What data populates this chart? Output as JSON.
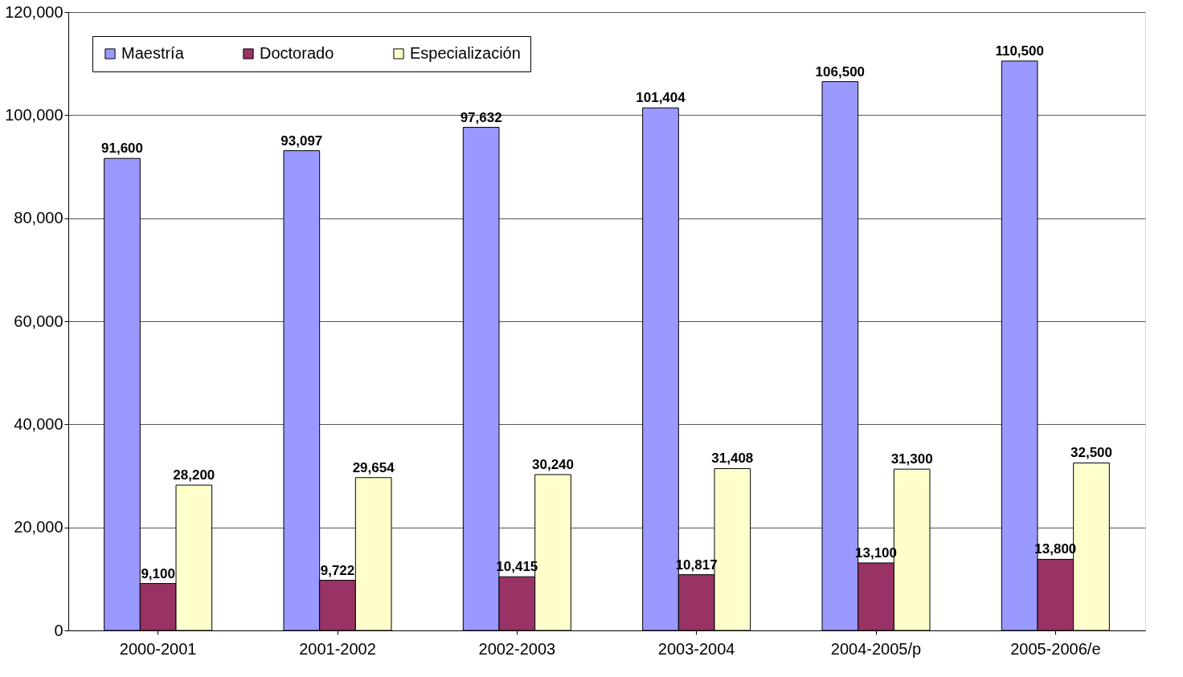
{
  "chart_data": {
    "type": "bar",
    "categories": [
      "2000-2001",
      "2001-2002",
      "2002-2003",
      "2003-2004",
      "2004-2005/p",
      "2005-2006/e"
    ],
    "series": [
      {
        "name": "Maestría",
        "color": "#9999ff",
        "values": [
          91600,
          93097,
          97632,
          101404,
          106500,
          110500
        ],
        "value_labels": [
          "91,600",
          "93,097",
          "97,632",
          "101,404",
          "106,500",
          "110,500"
        ]
      },
      {
        "name": "Doctorado",
        "color": "#993366",
        "values": [
          9100,
          9722,
          10415,
          10817,
          13100,
          13800
        ],
        "value_labels": [
          "9,100",
          "9,722",
          "10,415",
          "10,817",
          "13,100",
          "13,800"
        ]
      },
      {
        "name": "Especialización",
        "color": "#ffffcc",
        "values": [
          28200,
          29654,
          30240,
          31408,
          31300,
          32500
        ],
        "value_labels": [
          "28,200",
          "29,654",
          "30,240",
          "31,408",
          "31,300",
          "32,500"
        ]
      }
    ],
    "ylim": [
      0,
      120000
    ],
    "yticks": [
      {
        "value": 0,
        "label": "0"
      },
      {
        "value": 20000,
        "label": "20,000"
      },
      {
        "value": 40000,
        "label": "40,000"
      },
      {
        "value": 60000,
        "label": "60,000"
      },
      {
        "value": 80000,
        "label": "80,000"
      },
      {
        "value": 100000,
        "label": "100,000"
      },
      {
        "value": 120000,
        "label": "120,000"
      }
    ],
    "grid": "y",
    "legend": "top left"
  }
}
